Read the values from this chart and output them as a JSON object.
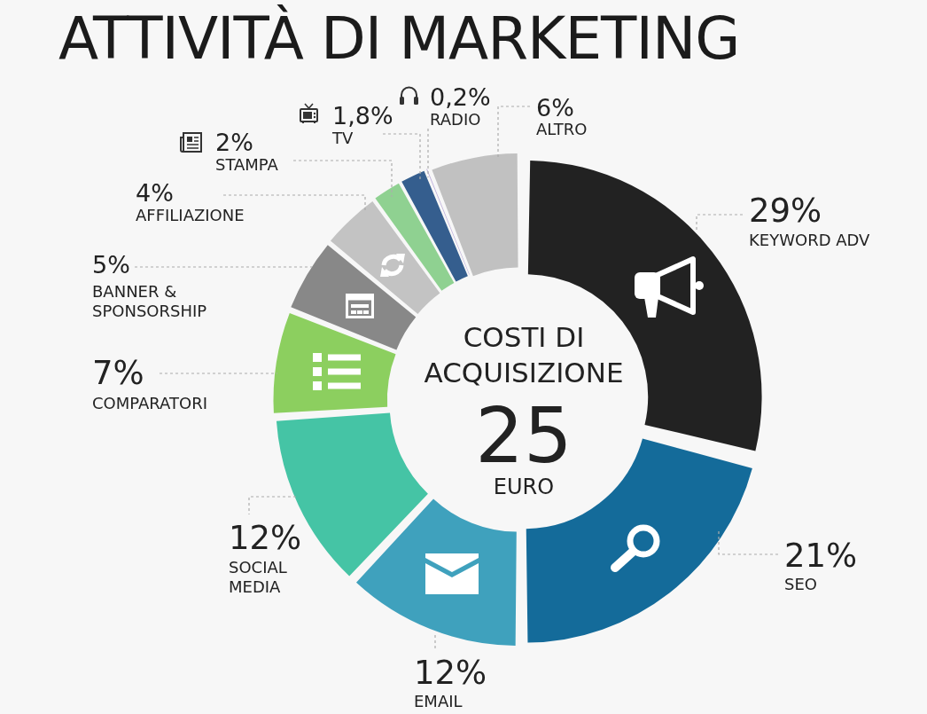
{
  "chart_data": {
    "type": "donut",
    "title": "ATTIVITÀ DI MARKETING",
    "categories": [
      "KEYWORD ADV",
      "SEO",
      "EMAIL",
      "SOCIAL MEDIA",
      "COMPARATORI",
      "BANNER & SPONSORSHIP",
      "AFFILIAZIONE",
      "STAMPA",
      "TV",
      "RADIO",
      "ALTRO"
    ],
    "values": [
      29,
      21,
      12,
      12,
      7,
      5,
      4,
      2,
      1.8,
      0.2,
      6
    ],
    "colors": [
      "#222222",
      "#146b9a",
      "#3fa1bd",
      "#45c4a5",
      "#8ccf5f",
      "#888888",
      "#c3c3c3",
      "#8fd191",
      "#355e8e",
      "#b9a9d9",
      "#c1c1c1"
    ],
    "value_labels": [
      "29%",
      "21%",
      "12%",
      "12%",
      "7%",
      "5%",
      "4%",
      "2%",
      "1,8%",
      "0,2%",
      "6%"
    ],
    "annotations": [
      "COSTI DI ACQUISIZIONE",
      "25",
      "EURO"
    ]
  }
}
